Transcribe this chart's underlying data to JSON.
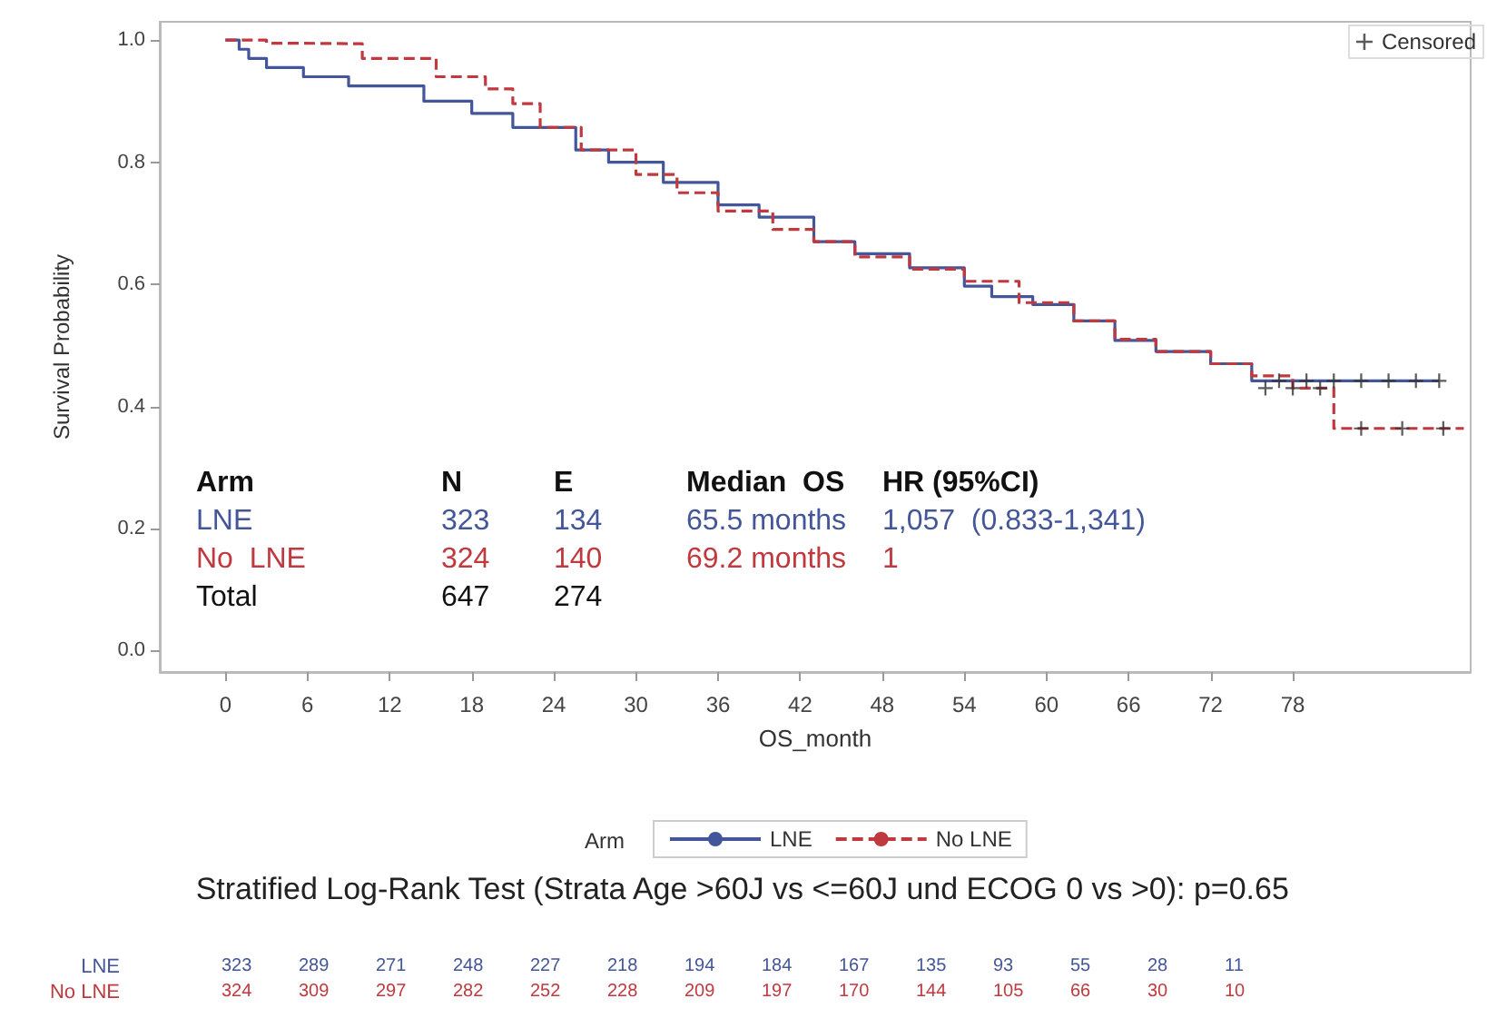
{
  "chart_data": {
    "type": "step",
    "xlabel": "OS_month",
    "ylabel": "Survival Probability",
    "legend_title": "Arm",
    "legend": "bottom",
    "grid": false,
    "xlim": [
      -4.8,
      91
    ],
    "xticks": [
      0,
      6,
      12,
      18,
      24,
      30,
      36,
      42,
      48,
      54,
      60,
      66,
      72,
      78
    ],
    "ylim": [
      -0.035,
      1.03
    ],
    "yticks": [
      {
        "value": 0,
        "label": "0.0"
      },
      0.2,
      0.4,
      0.6,
      0.8,
      {
        "value": 1,
        "label": "1.0"
      }
    ],
    "series": [
      {
        "name": "LNE",
        "color": "#44569a",
        "line_style": "solid",
        "marker": "none",
        "x": [
          0,
          1,
          1.7,
          3,
          5.7,
          9,
          14.5,
          18,
          21,
          25.6,
          28,
          32,
          36,
          39,
          43,
          46,
          50,
          54,
          56,
          59,
          62,
          65,
          68,
          72,
          75,
          88.7
        ],
        "values": [
          1.0,
          0.985,
          0.97,
          0.955,
          0.94,
          0.925,
          0.9,
          0.88,
          0.857,
          0.82,
          0.8,
          0.767,
          0.73,
          0.71,
          0.67,
          0.65,
          0.627,
          0.597,
          0.58,
          0.567,
          0.54,
          0.508,
          0.49,
          0.47,
          0.442,
          0.442
        ]
      },
      {
        "name": "No LNE",
        "color": "#c0393f",
        "line_style": "dashed",
        "marker": "none",
        "x": [
          0,
          3,
          4.8,
          10,
          15.4,
          19,
          21,
          23,
          26,
          30,
          33,
          36,
          40,
          43,
          46,
          50,
          54,
          58,
          62,
          65,
          68,
          72,
          75,
          78,
          81,
          90.5
        ],
        "values": [
          1.0,
          0.995,
          0.994,
          0.97,
          0.94,
          0.92,
          0.896,
          0.857,
          0.82,
          0.78,
          0.75,
          0.72,
          0.69,
          0.67,
          0.645,
          0.625,
          0.605,
          0.57,
          0.54,
          0.51,
          0.49,
          0.47,
          0.45,
          0.43,
          0.364,
          0.364
        ]
      },
      {
        "name": "Censored",
        "type": "scatter",
        "marker": "cross",
        "color": "#333333",
        "x": [
          77,
          79,
          81,
          83,
          85,
          87,
          88.7,
          76,
          78,
          80,
          83,
          86,
          89
        ],
        "values": [
          0.442,
          0.442,
          0.442,
          0.442,
          0.442,
          0.442,
          0.442,
          0.43,
          0.43,
          0.43,
          0.364,
          0.364,
          0.364
        ]
      }
    ],
    "annotations": [
      "Arm",
      "N",
      "E",
      "Median  OS",
      "HR (95%CI)",
      "LNE",
      "323",
      "134",
      "65.5 months",
      "1,057  (0.833-1,341)",
      "No  LNE",
      "324",
      "140",
      "69.2 months",
      "1",
      "Total",
      "647",
      "274",
      "Stratified Log-Rank Test (Strata Age >60J vs <=60J und ECOG 0 vs >0): p=0.65",
      "LNE",
      "323",
      "289",
      "271",
      "248",
      "227",
      "218",
      "194",
      "184",
      "167",
      "135",
      "93",
      "55",
      "28",
      "11",
      "No LNE",
      "324",
      "309",
      "297",
      "282",
      "252",
      "228",
      "209",
      "197",
      "170",
      "144",
      "105",
      "66",
      "30",
      "10"
    ]
  }
}
